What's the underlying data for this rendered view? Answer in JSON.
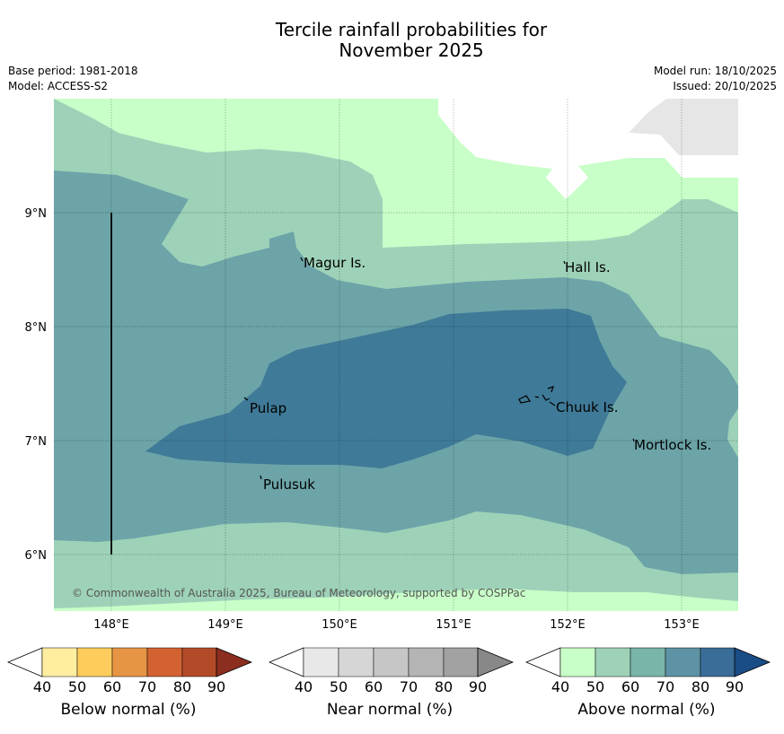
{
  "title_line1": "Tercile rainfall probabilities for",
  "title_line2": "November 2025",
  "meta_left": {
    "base_period": "Base period: 1981-2018",
    "model": "Model: ACCESS-S2"
  },
  "meta_right": {
    "model_run": "Model run: 18/10/2025",
    "issued": "Issued: 20/10/2025"
  },
  "map": {
    "lat_labels": [
      "9°N",
      "8°N",
      "7°N",
      "6°N"
    ],
    "lon_labels": [
      "148°E",
      "149°E",
      "150°E",
      "151°E",
      "152°E",
      "153°E"
    ],
    "places": [
      "Magur Is.",
      "Hall Is.",
      "Pulap",
      "Chuuk Is.",
      "Mortlock Is.",
      "Pulusuk"
    ],
    "copyright": "© Commonwealth of Australia 2025, Bureau of Meteorology, supported by COSPPac"
  },
  "colorbars": [
    {
      "label": "Below normal (%)",
      "ticks": [
        "40",
        "50",
        "60",
        "70",
        "80",
        "90"
      ],
      "colors": [
        "#ffeda0",
        "#fecc5c",
        "#e69545",
        "#d26231",
        "#b44b28",
        "#8c2e1f"
      ]
    },
    {
      "label": "Near normal (%)",
      "ticks": [
        "40",
        "50",
        "60",
        "70",
        "80",
        "90"
      ],
      "colors": [
        "#e8e8e8",
        "#d6d6d6",
        "#c6c6c6",
        "#b4b4b4",
        "#a2a2a2",
        "#888888"
      ]
    },
    {
      "label": "Above normal (%)",
      "ticks": [
        "40",
        "50",
        "60",
        "70",
        "80",
        "90"
      ],
      "colors": [
        "#c8ffc8",
        "#9ed2b8",
        "#79b5a9",
        "#5d93a4",
        "#3a6d98",
        "#1a4c86"
      ]
    }
  ],
  "colors": {
    "above_50": "#c8ffc8",
    "above_60": "#9ed2b8",
    "above_70": "#6ca4a8",
    "above_80": "#3f7a98",
    "near_40": "#e6e6e6"
  }
}
